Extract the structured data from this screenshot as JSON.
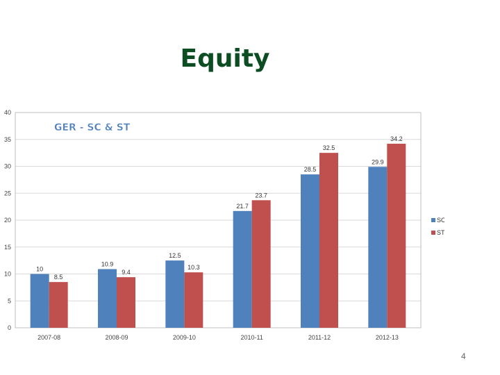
{
  "slide": {
    "title": "Equity",
    "page_number": "4"
  },
  "chart_data": {
    "type": "bar",
    "title": "GER - SC & ST",
    "xlabel": "",
    "ylabel": "",
    "ylim": [
      0,
      40
    ],
    "yticks": [
      0,
      5,
      10,
      15,
      20,
      25,
      30,
      35,
      40
    ],
    "categories": [
      "2007-08",
      "2008-09",
      "2009-10",
      "2010-11",
      "2011-12",
      "2012-13"
    ],
    "series": [
      {
        "name": "SC",
        "values": [
          10,
          10.9,
          12.5,
          21.7,
          28.5,
          29.9
        ],
        "color": "#4f81bd"
      },
      {
        "name": "ST",
        "values": [
          8.5,
          9.4,
          10.3,
          23.7,
          32.5,
          34.2
        ],
        "color": "#c0504d"
      }
    ],
    "data_labels": true,
    "legend_position": "right",
    "grid": true,
    "title_color": "#4f81bd"
  }
}
